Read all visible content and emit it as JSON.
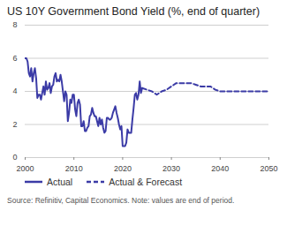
{
  "chart_data": {
    "type": "line",
    "title": "US 10Y Government Bond Yield (%, end of quarter)",
    "caption": "Source: Refinitiv, Capital Economics. Note: values are end of period.",
    "x": [
      2000,
      2000.25,
      2000.5,
      2000.75,
      2001,
      2001.25,
      2001.5,
      2001.75,
      2002,
      2002.25,
      2002.5,
      2002.75,
      2003,
      2003.25,
      2003.5,
      2003.75,
      2004,
      2004.25,
      2004.5,
      2004.75,
      2005,
      2005.25,
      2005.5,
      2005.75,
      2006,
      2006.25,
      2006.5,
      2006.75,
      2007,
      2007.25,
      2007.5,
      2007.75,
      2008,
      2008.25,
      2008.5,
      2008.75,
      2009,
      2009.25,
      2009.5,
      2009.75,
      2010,
      2010.25,
      2010.5,
      2010.75,
      2011,
      2011.25,
      2011.5,
      2011.75,
      2012,
      2012.25,
      2012.5,
      2012.75,
      2013,
      2013.25,
      2013.5,
      2013.75,
      2014,
      2014.25,
      2014.5,
      2014.75,
      2015,
      2015.25,
      2015.5,
      2015.75,
      2016,
      2016.25,
      2016.5,
      2016.75,
      2017,
      2017.25,
      2017.5,
      2017.75,
      2018,
      2018.25,
      2018.5,
      2018.75,
      2019,
      2019.25,
      2019.5,
      2019.75,
      2020,
      2020.25,
      2020.5,
      2020.75,
      2021,
      2021.25,
      2021.5,
      2021.75,
      2022,
      2022.25,
      2022.5,
      2022.75,
      2023,
      2023.25,
      2023.5,
      2023.75,
      2024,
      2025,
      2026,
      2027,
      2028,
      2029,
      2030,
      2031,
      2032,
      2033,
      2034,
      2035,
      2036,
      2037,
      2038,
      2039,
      2040,
      2041,
      2042,
      2043,
      2044,
      2045,
      2046,
      2047,
      2048,
      2049,
      2050
    ],
    "series": [
      {
        "name": "Actual",
        "color": "#3b3ba6",
        "line_style": "solid",
        "values": [
          6.0,
          6.0,
          5.8,
          5.1,
          4.9,
          5.4,
          4.6,
          5.1,
          5.4,
          4.8,
          3.6,
          3.8,
          3.8,
          3.5,
          3.9,
          4.3,
          3.8,
          4.6,
          4.1,
          4.2,
          4.5,
          3.9,
          4.3,
          4.4,
          4.9,
          5.1,
          4.6,
          4.7,
          4.6,
          5.0,
          4.6,
          4.0,
          3.4,
          4.0,
          3.8,
          2.2,
          2.7,
          3.5,
          3.3,
          3.8,
          3.8,
          2.9,
          2.5,
          3.3,
          3.5,
          3.2,
          1.9,
          1.9,
          2.2,
          1.6,
          1.6,
          1.8,
          1.9,
          2.5,
          2.6,
          3.0,
          2.7,
          2.5,
          2.5,
          2.2,
          1.9,
          2.4,
          2.0,
          2.3,
          1.8,
          1.5,
          1.6,
          2.4,
          2.4,
          2.3,
          2.3,
          2.4,
          2.7,
          2.9,
          3.1,
          2.7,
          2.4,
          2.0,
          1.7,
          1.9,
          0.7,
          0.7,
          0.7,
          0.9,
          1.7,
          1.5,
          1.5,
          1.5,
          2.3,
          3.0,
          3.8,
          3.9,
          3.5,
          3.8,
          4.6,
          3.9,
          4.2,
          null,
          null,
          null,
          null,
          null,
          null,
          null,
          null,
          null,
          null,
          null,
          null,
          null,
          null,
          null,
          null,
          null,
          null,
          null,
          null,
          null,
          null,
          null,
          null,
          null,
          null
        ]
      },
      {
        "name": "Actual & Forecast",
        "color": "#3b3ba6",
        "line_style": "dashed",
        "values": [
          null,
          null,
          null,
          null,
          null,
          null,
          null,
          null,
          null,
          null,
          null,
          null,
          null,
          null,
          null,
          null,
          null,
          null,
          null,
          null,
          null,
          null,
          null,
          null,
          null,
          null,
          null,
          null,
          null,
          null,
          null,
          null,
          null,
          null,
          null,
          null,
          null,
          null,
          null,
          null,
          null,
          null,
          null,
          null,
          null,
          null,
          null,
          null,
          null,
          null,
          null,
          null,
          null,
          null,
          null,
          null,
          null,
          null,
          null,
          null,
          null,
          null,
          null,
          null,
          null,
          null,
          null,
          null,
          null,
          null,
          null,
          null,
          null,
          null,
          null,
          null,
          null,
          null,
          null,
          null,
          null,
          null,
          null,
          null,
          null,
          null,
          null,
          null,
          null,
          null,
          null,
          null,
          null,
          null,
          null,
          null,
          4.2,
          4.1,
          4.0,
          3.8,
          4.0,
          4.1,
          4.3,
          4.5,
          4.5,
          4.5,
          4.5,
          4.4,
          4.3,
          4.3,
          4.3,
          4.1,
          4.0,
          4.0,
          4.0,
          4.0,
          4.0,
          4.0,
          4.0,
          4.0,
          4.0,
          4.0,
          4.0
        ]
      }
    ],
    "xlim": [
      2000,
      2050
    ],
    "xticks": [
      2000,
      2010,
      2020,
      2030,
      2040,
      2050
    ],
    "ylim": [
      0,
      8
    ],
    "yticks": [
      0,
      2,
      4,
      6,
      8
    ],
    "grid": true,
    "legend": "bottom"
  }
}
